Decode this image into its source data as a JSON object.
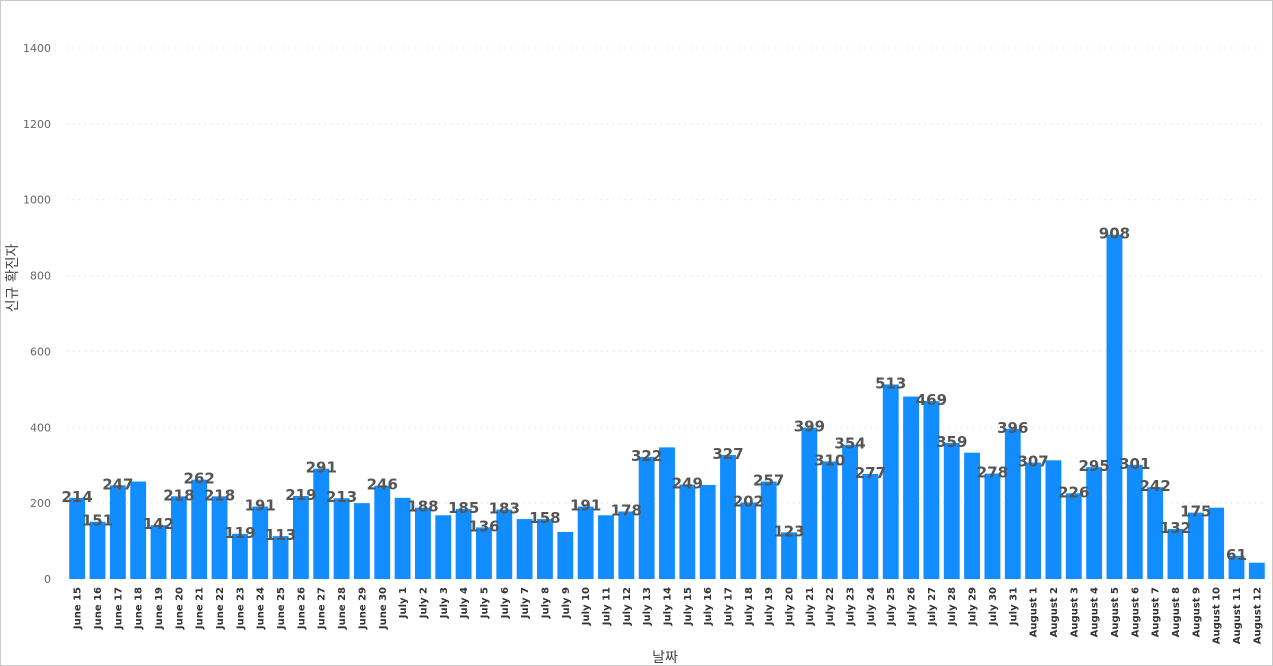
{
  "chart_data": {
    "type": "bar",
    "ylabel": "신규 확진자",
    "xlabel": "날짜",
    "ylim": [
      0,
      1400
    ],
    "yticks": [
      0,
      200,
      400,
      600,
      800,
      1000,
      1200,
      1400
    ],
    "grid": "horizontal dotted",
    "bar_color": "#118DFF",
    "categories": [
      "June 15",
      "June 16",
      "June 17",
      "June 18",
      "June 19",
      "June 20",
      "June 21",
      "June 22",
      "June 23",
      "June 24",
      "June 25",
      "June 26",
      "June 27",
      "June 28",
      "June 29",
      "June 30",
      "July 1",
      "July 2",
      "July 3",
      "July 4",
      "July 5",
      "July 6",
      "July 7",
      "July 8",
      "July 9",
      "July 10",
      "July 11",
      "July 12",
      "July 13",
      "July 14",
      "July 15",
      "July 16",
      "July 17",
      "July 18",
      "July 19",
      "July 20",
      "July 21",
      "July 22",
      "July 23",
      "July 24",
      "July 25",
      "July 26",
      "July 27",
      "July 28",
      "July 29",
      "July 30",
      "July 31",
      "August 1",
      "August 2",
      "August 3",
      "August 4",
      "August 5",
      "August 6",
      "August 7",
      "August 8",
      "August 9",
      "August 10",
      "August 11",
      "August 12"
    ],
    "values": [
      214,
      151,
      247,
      257,
      142,
      218,
      262,
      218,
      119,
      191,
      113,
      219,
      291,
      213,
      200,
      246,
      214,
      188,
      168,
      185,
      136,
      183,
      158,
      158,
      124,
      191,
      168,
      178,
      322,
      347,
      249,
      248,
      327,
      202,
      257,
      123,
      399,
      310,
      354,
      277,
      513,
      481,
      469,
      359,
      333,
      278,
      396,
      307,
      313,
      226,
      295,
      908,
      301,
      242,
      132,
      175,
      188,
      61,
      43
    ],
    "labels_shown": [
      "214",
      "151",
      "247",
      "",
      "142",
      "218",
      "262",
      "218",
      "119",
      "191",
      "113",
      "219",
      "291",
      "213",
      "",
      "246",
      "",
      "188",
      "",
      "185",
      "136",
      "183",
      "",
      "158",
      "",
      "191",
      "",
      "178",
      "322",
      "",
      "249",
      "",
      "327",
      "202",
      "257",
      "123",
      "399",
      "310",
      "354",
      "277",
      "513",
      "",
      "469",
      "359",
      "",
      "278",
      "396",
      "307",
      "",
      "226",
      "295",
      "908",
      "301",
      "242",
      "132",
      "175",
      "",
      "61",
      ""
    ]
  }
}
